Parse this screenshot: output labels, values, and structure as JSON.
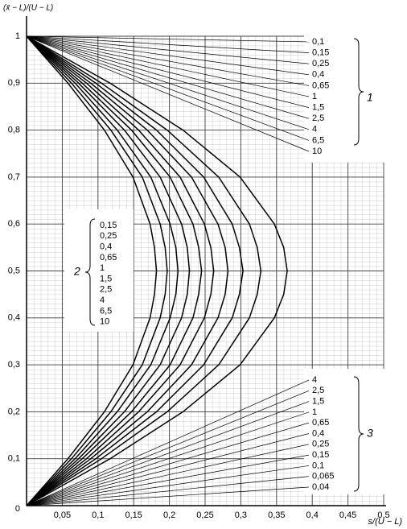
{
  "chart_data": {
    "type": "line",
    "y_label": "(x̄ − L)/(U − L)",
    "x_label": "s/(U − L)",
    "xlim": [
      0,
      0.5
    ],
    "ylim": [
      0,
      1
    ],
    "xticks": [
      {
        "value": 0.05,
        "label": "0,05"
      },
      {
        "value": 0.1,
        "label": "0,1"
      },
      {
        "value": 0.15,
        "label": "0,15"
      },
      {
        "value": 0.2,
        "label": "0,2"
      },
      {
        "value": 0.25,
        "label": "0,25"
      },
      {
        "value": 0.3,
        "label": "0,3"
      },
      {
        "value": 0.35,
        "label": "0,35"
      },
      {
        "value": 0.4,
        "label": "0,4"
      },
      {
        "value": 0.45,
        "label": "0,45"
      },
      {
        "value": 0.5,
        "label": "0,5"
      }
    ],
    "yticks": [
      0,
      {
        "value": 0.1,
        "label": "0,1"
      },
      {
        "value": 0.2,
        "label": "0,2"
      },
      {
        "value": 0.3,
        "label": "0,3"
      },
      {
        "value": 0.4,
        "label": "0,4"
      },
      {
        "value": 0.5,
        "label": "0,5"
      },
      {
        "value": 0.6,
        "label": "0,6"
      },
      {
        "value": 0.7,
        "label": "0,7"
      },
      {
        "value": 0.8,
        "label": "0,8"
      },
      {
        "value": 0.9,
        "label": "0,9"
      },
      1
    ],
    "grid": true,
    "series": [
      {
        "name": "0,15",
        "color": "#000000",
        "x": [
          0,
          0.058,
          0.109,
          0.149,
          0.173,
          0.179,
          0.182,
          0.179,
          0.173,
          0.149,
          0.109,
          0.058,
          0
        ],
        "values": [
          1,
          0.9,
          0.8,
          0.7,
          0.6,
          0.55,
          0.5,
          0.45,
          0.4,
          0.3,
          0.2,
          0.1,
          0
        ]
      },
      {
        "name": "0,25",
        "color": "#000000",
        "x": [
          0,
          0.063,
          0.118,
          0.162,
          0.187,
          0.194,
          0.197,
          0.194,
          0.187,
          0.162,
          0.118,
          0.063,
          0
        ],
        "values": [
          1,
          0.9,
          0.8,
          0.7,
          0.6,
          0.55,
          0.5,
          0.45,
          0.4,
          0.3,
          0.2,
          0.1,
          0
        ]
      },
      {
        "name": "0,4",
        "color": "#000000",
        "x": [
          0,
          0.068,
          0.127,
          0.174,
          0.201,
          0.209,
          0.212,
          0.209,
          0.201,
          0.174,
          0.127,
          0.068,
          0
        ],
        "values": [
          1,
          0.9,
          0.8,
          0.7,
          0.6,
          0.55,
          0.5,
          0.45,
          0.4,
          0.3,
          0.2,
          0.1,
          0
        ]
      },
      {
        "name": "0,65",
        "color": "#000000",
        "x": [
          0,
          0.073,
          0.137,
          0.187,
          0.217,
          0.225,
          0.228,
          0.225,
          0.217,
          0.187,
          0.137,
          0.073,
          0
        ],
        "values": [
          1,
          0.9,
          0.8,
          0.7,
          0.6,
          0.55,
          0.5,
          0.45,
          0.4,
          0.3,
          0.2,
          0.1,
          0
        ]
      },
      {
        "name": "1",
        "color": "#000000",
        "x": [
          0,
          0.078,
          0.147,
          0.201,
          0.233,
          0.241,
          0.245,
          0.241,
          0.233,
          0.201,
          0.147,
          0.078,
          0
        ],
        "values": [
          1,
          0.9,
          0.8,
          0.7,
          0.6,
          0.55,
          0.5,
          0.45,
          0.4,
          0.3,
          0.2,
          0.1,
          0
        ]
      },
      {
        "name": "1,5",
        "color": "#000000",
        "x": [
          0,
          0.084,
          0.157,
          0.215,
          0.249,
          0.258,
          0.262,
          0.258,
          0.249,
          0.215,
          0.157,
          0.084,
          0
        ],
        "values": [
          1,
          0.9,
          0.8,
          0.7,
          0.6,
          0.55,
          0.5,
          0.45,
          0.4,
          0.3,
          0.2,
          0.1,
          0
        ]
      },
      {
        "name": "2,5",
        "color": "#000000",
        "x": [
          0,
          0.09,
          0.169,
          0.231,
          0.268,
          0.278,
          0.282,
          0.278,
          0.268,
          0.231,
          0.169,
          0.09,
          0
        ],
        "values": [
          1,
          0.9,
          0.8,
          0.7,
          0.6,
          0.55,
          0.5,
          0.45,
          0.4,
          0.3,
          0.2,
          0.1,
          0
        ]
      },
      {
        "name": "4",
        "color": "#000000",
        "x": [
          0,
          0.097,
          0.182,
          0.248,
          0.288,
          0.298,
          0.303,
          0.298,
          0.288,
          0.248,
          0.182,
          0.097,
          0
        ],
        "values": [
          1,
          0.9,
          0.8,
          0.7,
          0.6,
          0.55,
          0.5,
          0.45,
          0.4,
          0.3,
          0.2,
          0.1,
          0
        ]
      },
      {
        "name": "6,5",
        "color": "#000000",
        "x": [
          0,
          0.105,
          0.197,
          0.269,
          0.312,
          0.323,
          0.328,
          0.323,
          0.312,
          0.269,
          0.197,
          0.105,
          0
        ],
        "values": [
          1,
          0.9,
          0.8,
          0.7,
          0.6,
          0.55,
          0.5,
          0.45,
          0.4,
          0.3,
          0.2,
          0.1,
          0
        ]
      },
      {
        "name": "10",
        "color": "#000000",
        "x": [
          0,
          0.117,
          0.219,
          0.299,
          0.347,
          0.36,
          0.365,
          0.36,
          0.347,
          0.299,
          0.219,
          0.117,
          0
        ],
        "values": [
          1,
          0.9,
          0.8,
          0.7,
          0.6,
          0.55,
          0.5,
          0.45,
          0.4,
          0.3,
          0.2,
          0.1,
          0
        ]
      }
    ],
    "groups": [
      {
        "number": "1",
        "labels": [
          "0,1",
          "0,15",
          "0,25",
          "0,4",
          "0,65",
          "1",
          "1,5",
          "2,5",
          "4",
          "6,5",
          "10"
        ]
      },
      {
        "number": "2"
      },
      {
        "number": "3",
        "labels": [
          "4",
          "2,5",
          "1,5",
          "1",
          "0,65",
          "0,4",
          "0,25",
          "0,15",
          "0,1",
          "0,065",
          "0,04"
        ]
      }
    ]
  }
}
